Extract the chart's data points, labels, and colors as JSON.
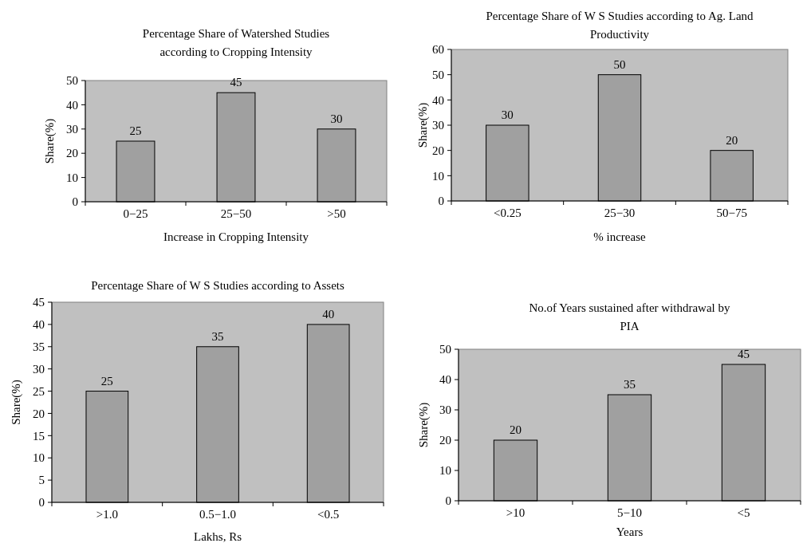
{
  "chart_data": [
    {
      "type": "bar",
      "title": "Percentage Share of Watershed Studies according to Cropping Intensity",
      "xlabel": "Increase in Cropping Intensity",
      "ylabel": "Share(%)",
      "categories": [
        "0−25",
        "25−50",
        ">50"
      ],
      "values": [
        25,
        45,
        30
      ],
      "color": "#a0a0a0",
      "ylim": [
        0,
        50
      ],
      "yticks": [
        0,
        10,
        20,
        30,
        40,
        50
      ],
      "grid": false,
      "data_labels": true
    },
    {
      "type": "bar",
      "title": "Percentage Share of W S Studies according to Ag. Land Productivity",
      "xlabel": "% increase",
      "ylabel": "Share(%)",
      "categories": [
        "<0.25",
        "25−30",
        "50−75"
      ],
      "values": [
        30,
        50,
        20
      ],
      "color": "#a0a0a0",
      "ylim": [
        0,
        60
      ],
      "yticks": [
        0,
        10,
        20,
        30,
        40,
        50,
        60
      ],
      "grid": false,
      "data_labels": true
    },
    {
      "type": "bar",
      "title": "Percentage Share of W S Studies according to Assets",
      "xlabel": "Lakhs, Rs",
      "ylabel": "Share(%)",
      "categories": [
        ">1.0",
        "0.5−1.0",
        "<0.5"
      ],
      "values": [
        25,
        35,
        40
      ],
      "color": "#a0a0a0",
      "ylim": [
        0,
        45
      ],
      "yticks": [
        0,
        5,
        10,
        15,
        20,
        25,
        30,
        35,
        40,
        45
      ],
      "grid": false,
      "data_labels": true
    },
    {
      "type": "bar",
      "title": "No.of Years sustained after withdrawal by PIA",
      "xlabel": "Years",
      "ylabel": "Share(%)",
      "categories": [
        ">10",
        "5−10",
        "<5"
      ],
      "values": [
        20,
        35,
        45
      ],
      "color": "#a0a0a0",
      "ylim": [
        0,
        50
      ],
      "yticks": [
        0,
        10,
        20,
        30,
        40,
        50
      ],
      "grid": false,
      "data_labels": true
    }
  ]
}
